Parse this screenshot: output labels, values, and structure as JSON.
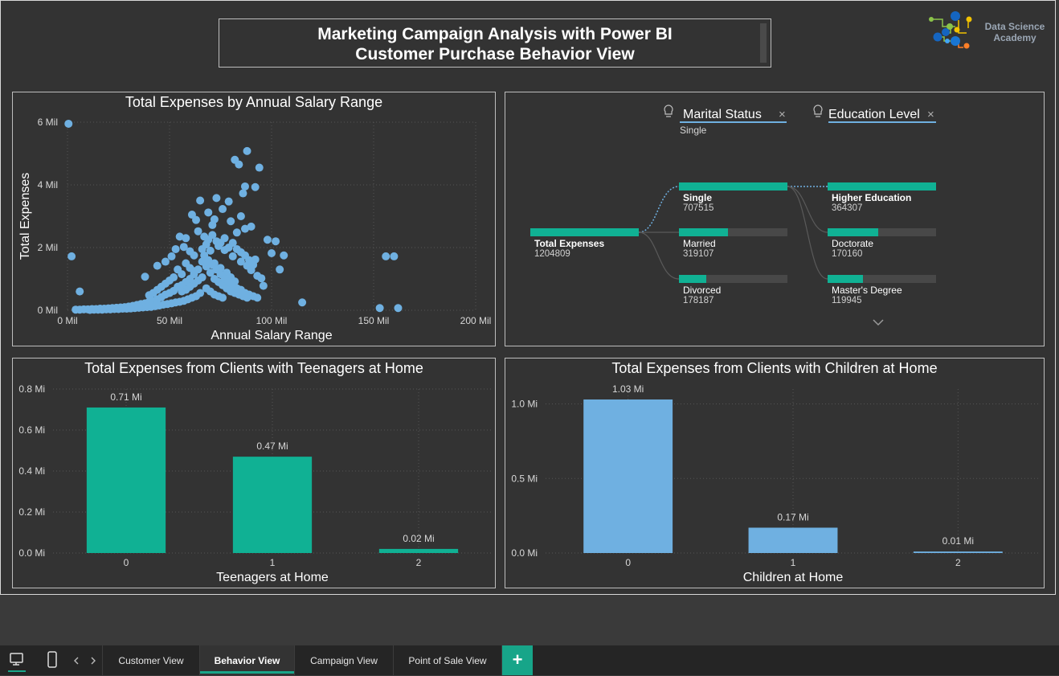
{
  "header": {
    "title_line1": "Marketing Campaign Analysis with Power BI",
    "title_line2": "Customer Purchase Behavior View",
    "logo_line1": "Data Science",
    "logo_line2": "Academy"
  },
  "colors": {
    "teal": "#10b194",
    "blue": "#6fb0e1",
    "background": "#333333"
  },
  "scatter": {
    "title": "Total Expenses by Annual Salary Range",
    "xlabel": "Annual Salary Range",
    "ylabel": "Total Expenses",
    "xticks": [
      "0 Mil",
      "50 Mil",
      "100 Mil",
      "150 Mil",
      "200 Mil"
    ],
    "yticks": [
      "0 Mil",
      "2 Mil",
      "4 Mil",
      "6 Mil"
    ]
  },
  "decomposition": {
    "filter1_label": "Marital Status",
    "filter1_value": "Single",
    "filter2_label": "Education Level",
    "root": {
      "label": "Total Expenses",
      "value": "1204809"
    },
    "level1": [
      {
        "label": "Single",
        "value": "707515"
      },
      {
        "label": "Married",
        "value": "319107"
      },
      {
        "label": "Divorced",
        "value": "178187"
      }
    ],
    "level2": [
      {
        "label": "Higher Education",
        "value": "364307"
      },
      {
        "label": "Doctorate",
        "value": "170160"
      },
      {
        "label": "Master's Degree",
        "value": "119945"
      }
    ]
  },
  "chart_data": [
    {
      "type": "scatter",
      "title": "Total Expenses by Annual Salary Range",
      "xlabel": "Annual Salary Range",
      "ylabel": "Total Expenses",
      "xlim": [
        0,
        200
      ],
      "ylim": [
        0,
        6
      ],
      "x_unit": "Mil",
      "y_unit": "Mil",
      "grid": true,
      "points": [
        [
          0.5,
          5.95
        ],
        [
          2,
          1.72
        ],
        [
          6,
          0.6
        ],
        [
          162,
          0.07
        ],
        [
          156,
          1.72
        ],
        [
          160,
          1.72
        ],
        [
          153,
          0.07
        ],
        [
          115,
          0.25
        ],
        [
          82,
          4.8
        ],
        [
          88,
          5.08
        ],
        [
          84,
          4.65
        ],
        [
          94,
          4.55
        ],
        [
          87,
          3.95
        ],
        [
          92,
          3.93
        ],
        [
          86,
          3.73
        ],
        [
          73,
          3.58
        ],
        [
          79,
          3.47
        ],
        [
          65,
          3.5
        ],
        [
          76,
          3.23
        ],
        [
          69,
          3.12
        ],
        [
          61,
          3.05
        ],
        [
          85,
          3.0
        ],
        [
          72,
          2.9
        ],
        [
          63,
          2.88
        ],
        [
          80,
          2.84
        ],
        [
          90,
          2.67
        ],
        [
          55,
          2.35
        ],
        [
          58,
          2.3
        ],
        [
          64,
          2.52
        ],
        [
          71,
          2.72
        ],
        [
          83,
          2.48
        ],
        [
          87,
          2.6
        ],
        [
          98,
          2.25
        ],
        [
          100,
          1.82
        ],
        [
          92,
          1.62
        ],
        [
          106,
          1.75
        ],
        [
          104,
          1.3
        ],
        [
          96,
          0.78
        ],
        [
          38,
          1.07
        ],
        [
          44,
          1.42
        ],
        [
          48,
          1.55
        ],
        [
          51,
          1.72
        ],
        [
          53,
          1.95
        ],
        [
          57,
          2.02
        ],
        [
          60,
          1.88
        ],
        [
          62,
          1.75
        ],
        [
          66,
          1.95
        ],
        [
          68,
          2.1
        ],
        [
          70,
          1.9
        ],
        [
          74,
          2.05
        ],
        [
          77,
          1.92
        ],
        [
          81,
          1.72
        ],
        [
          85,
          1.55
        ],
        [
          88,
          1.42
        ],
        [
          90,
          1.28
        ],
        [
          93,
          1.1
        ],
        [
          95,
          1.02
        ],
        [
          72,
          1.5
        ],
        [
          75,
          1.35
        ],
        [
          78,
          1.2
        ],
        [
          80,
          1.05
        ],
        [
          82,
          0.92
        ],
        [
          66,
          1.55
        ],
        [
          68,
          1.4
        ],
        [
          64,
          1.3
        ],
        [
          62,
          1.15
        ],
        [
          60,
          1.0
        ],
        [
          58,
          0.9
        ],
        [
          56,
          0.8
        ],
        [
          54,
          0.75
        ],
        [
          52,
          0.62
        ],
        [
          50,
          0.55
        ],
        [
          48,
          0.5
        ],
        [
          46,
          0.42
        ],
        [
          44,
          0.35
        ],
        [
          42,
          0.3
        ],
        [
          40,
          0.27
        ],
        [
          38,
          0.22
        ],
        [
          36,
          0.2
        ],
        [
          34,
          0.17
        ],
        [
          32,
          0.14
        ],
        [
          30,
          0.12
        ],
        [
          28,
          0.1
        ],
        [
          26,
          0.09
        ],
        [
          24,
          0.08
        ],
        [
          22,
          0.07
        ],
        [
          20,
          0.06
        ],
        [
          18,
          0.05
        ],
        [
          16,
          0.05
        ],
        [
          14,
          0.04
        ],
        [
          12,
          0.04
        ],
        [
          10,
          0.03
        ],
        [
          8,
          0.03
        ],
        [
          6,
          0.02
        ],
        [
          4,
          0.02
        ],
        [
          70,
          1.2
        ],
        [
          72,
          1.0
        ],
        [
          74,
          0.9
        ],
        [
          76,
          0.8
        ],
        [
          78,
          0.7
        ],
        [
          80,
          0.6
        ],
        [
          82,
          0.55
        ],
        [
          84,
          0.5
        ],
        [
          86,
          0.45
        ],
        [
          88,
          0.4
        ],
        [
          66,
          1.05
        ],
        [
          64,
          0.95
        ],
        [
          62,
          0.85
        ],
        [
          60,
          0.75
        ],
        [
          58,
          0.65
        ],
        [
          56,
          0.6
        ],
        [
          68,
          0.7
        ],
        [
          70,
          0.6
        ],
        [
          72,
          0.5
        ],
        [
          74,
          0.45
        ],
        [
          76,
          0.4
        ],
        [
          65,
          0.55
        ],
        [
          63,
          0.45
        ],
        [
          61,
          0.4
        ],
        [
          59,
          0.35
        ],
        [
          57,
          0.3
        ],
        [
          55,
          0.27
        ],
        [
          53,
          0.25
        ],
        [
          51,
          0.22
        ],
        [
          49,
          0.2
        ],
        [
          47,
          0.18
        ],
        [
          45,
          0.15
        ],
        [
          43,
          0.13
        ],
        [
          41,
          0.11
        ],
        [
          39,
          0.1
        ],
        [
          37,
          0.09
        ],
        [
          35,
          0.08
        ],
        [
          33,
          0.07
        ],
        [
          31,
          0.06
        ],
        [
          29,
          0.05
        ],
        [
          27,
          0.05
        ],
        [
          25,
          0.04
        ],
        [
          23,
          0.04
        ],
        [
          21,
          0.03
        ],
        [
          19,
          0.03
        ],
        [
          17,
          0.02
        ],
        [
          15,
          0.02
        ],
        [
          13,
          0.02
        ],
        [
          11,
          0.01
        ],
        [
          67,
          2.35
        ],
        [
          69,
          2.25
        ],
        [
          71,
          2.4
        ],
        [
          73,
          2.2
        ],
        [
          75,
          2.15
        ],
        [
          77,
          2.3
        ],
        [
          79,
          2.0
        ],
        [
          81,
          2.15
        ],
        [
          83,
          1.95
        ],
        [
          85,
          1.85
        ],
        [
          87,
          1.75
        ],
        [
          89,
          1.6
        ],
        [
          91,
          1.45
        ],
        [
          67,
          1.75
        ],
        [
          69,
          1.6
        ],
        [
          71,
          1.45
        ],
        [
          73,
          1.3
        ],
        [
          75,
          1.15
        ],
        [
          77,
          1.0
        ],
        [
          79,
          0.9
        ],
        [
          81,
          0.8
        ],
        [
          83,
          0.7
        ],
        [
          85,
          0.65
        ],
        [
          87,
          0.55
        ],
        [
          89,
          0.5
        ],
        [
          91,
          0.45
        ],
        [
          93,
          0.4
        ],
        [
          58,
          1.5
        ],
        [
          60,
          1.35
        ],
        [
          62,
          1.25
        ],
        [
          54,
          1.3
        ],
        [
          56,
          1.15
        ],
        [
          52,
          1.05
        ],
        [
          50,
          0.95
        ],
        [
          48,
          0.85
        ],
        [
          46,
          0.75
        ],
        [
          44,
          0.65
        ],
        [
          42,
          0.55
        ],
        [
          40,
          0.48
        ],
        [
          102,
          2.2
        ]
      ]
    },
    {
      "type": "bar",
      "title": "Total Expenses from Clients with Teenagers at Home",
      "xlabel": "Teenagers at Home",
      "ylabel": "",
      "categories": [
        "0",
        "1",
        "2"
      ],
      "values": [
        0.71,
        0.47,
        0.02
      ],
      "value_labels": [
        "0.71 Mi",
        "0.47 Mi",
        "0.02 Mi"
      ],
      "yticks": [
        "0.0 Mi",
        "0.2 Mi",
        "0.4 Mi",
        "0.6 Mi",
        "0.8 Mi"
      ],
      "ylim": [
        0,
        0.8
      ],
      "color": "#10b194"
    },
    {
      "type": "bar",
      "title": "Total Expenses from Clients with Children at Home",
      "xlabel": "Children at Home",
      "ylabel": "",
      "categories": [
        "0",
        "1",
        "2"
      ],
      "values": [
        1.03,
        0.17,
        0.01
      ],
      "value_labels": [
        "1.03 Mi",
        "0.17 Mi",
        "0.01 Mi"
      ],
      "yticks": [
        "0.0 Mi",
        "0.5 Mi",
        "1.0 Mi"
      ],
      "ylim": [
        0,
        1.1
      ],
      "color": "#6fb0e1"
    }
  ],
  "tabs": [
    {
      "label": "Customer View"
    },
    {
      "label": "Behavior View"
    },
    {
      "label": "Campaign View"
    },
    {
      "label": "Point of Sale View"
    }
  ],
  "add_tab_label": "+"
}
